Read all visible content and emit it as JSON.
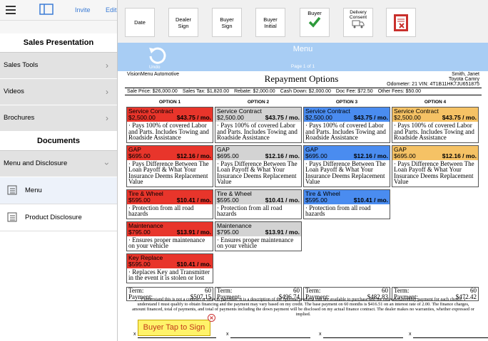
{
  "sidebar": {
    "invite": "Invite",
    "edit": "Edit",
    "sections": [
      {
        "title": "Sales Presentation",
        "items": [
          "Sales Tools",
          "Videos",
          "Brochures"
        ]
      },
      {
        "title": "Documents",
        "items": [
          "Menu and Disclosure"
        ]
      }
    ],
    "subitems": [
      "Menu",
      "Product Disclosure"
    ]
  },
  "toolbar": {
    "buttons": [
      "Date",
      "Dealer Sign",
      "Buyer Sign",
      "Buyer Initial",
      "Buyer",
      "Delivery Consent"
    ]
  },
  "header": {
    "undo": "Undo",
    "title": "Menu",
    "page": "Page 1 of 1"
  },
  "document": {
    "dealer": "VisionMenu Automotive",
    "title": "Repayment Options",
    "customer": "Smith, Janet",
    "vehicle": "Toyota Camry",
    "odometer": "Odometer: 21 VIN: 4T1B11HK7JU651875",
    "deal": [
      "Sale Price: $26,000.00",
      "Sales Tax: $1,820.00",
      "Rebate: $2,000.00",
      "Cash Down: $2,000.00",
      "Doc Fee: $72.50",
      "Other Fees: $50.00"
    ],
    "options": [
      {
        "label": "OPTION 1",
        "color": "#e8352b",
        "term_label": "Term:",
        "term": 60,
        "payment_label": "Payment:",
        "payment": "$507.15",
        "products": [
          {
            "name": "Service Contract",
            "price": "$2,500.00",
            "monthly": "$43.75 / mo.",
            "description": "· Pays 100% of covered Labor and Parts. Includes Towing and Roadside Assistance"
          },
          {
            "name": "GAP",
            "price": "$695.00",
            "monthly": "$12.16 / mo.",
            "description": "· Pays Difference Between The Loan Payoff & What Your Insurance Deems Replacement Value"
          },
          {
            "name": "Tire & Wheel",
            "price": "$595.00",
            "monthly": "$10.41 / mo.",
            "description": "· Protection from all road hazards"
          },
          {
            "name": "Maintenance",
            "price": "$795.00",
            "monthly": "$13.91 / mo.",
            "description": "· Ensures proper maintenance on your vehicle"
          },
          {
            "name": "Key Replace",
            "price": "$595.00",
            "monthly": "$10.41 / mo.",
            "description": "· Replaces Key and Transmitter in the event it is stolen or lost"
          }
        ]
      },
      {
        "label": "OPTION 2",
        "color": "#d3d3d3",
        "term_label": "Term:",
        "term": 60,
        "payment_label": "Payment:",
        "payment": "$496.74",
        "products": [
          {
            "name": "Service Contract",
            "price": "$2,500.00",
            "monthly": "$43.75 / mo.",
            "description": "· Pays 100% of covered Labor and Parts. Includes Towing and Roadside Assistance"
          },
          {
            "name": "GAP",
            "price": "$695.00",
            "monthly": "$12.16 / mo.",
            "description": "· Pays Difference Between The Loan Payoff & What Your Insurance Deems Replacement Value"
          },
          {
            "name": "Tire & Wheel",
            "price": "$595.00",
            "monthly": "$10.41 / mo.",
            "description": "· Protection from all road hazards"
          },
          {
            "name": "Maintenance",
            "price": "$795.00",
            "monthly": "$13.91 / mo.",
            "description": "· Ensures proper maintenance on your vehicle"
          }
        ]
      },
      {
        "label": "OPTION 3",
        "color": "#4a8cf0",
        "term_label": "Term:",
        "term": 60,
        "payment_label": "Payment:",
        "payment": "$482.83",
        "products": [
          {
            "name": "Service Contract",
            "price": "$2,500.00",
            "monthly": "$43.75 / mo.",
            "description": "· Pays 100% of covered Labor and Parts. Includes Towing and Roadside Assistance"
          },
          {
            "name": "GAP",
            "price": "$695.00",
            "monthly": "$12.16 / mo.",
            "description": "· Pays Difference Between The Loan Payoff & What Your Insurance Deems Replacement Value"
          },
          {
            "name": "Tire & Wheel",
            "price": "$595.00",
            "monthly": "$10.41 / mo.",
            "description": "· Protection from all road hazards"
          }
        ]
      },
      {
        "label": "OPTION 4",
        "color": "#f5c265",
        "term_label": "Term:",
        "term": 60,
        "payment_label": "Payment:",
        "payment": "$472.42",
        "products": [
          {
            "name": "Service Contract",
            "price": "$2,500.00",
            "monthly": "$43.75 / mo.",
            "description": "· Pays 100% of covered Labor and Parts. Includes Towing and Roadside Assistance"
          },
          {
            "name": "GAP",
            "price": "$695.00",
            "monthly": "$12.16 / mo.",
            "description": "· Pays Difference Between The Loan Payoff & What Your Insurance Deems Replacement Value"
          }
        ]
      }
    ],
    "disclaimer": "I understand this is not a contract or offer to purchase. It is a description of the optional products that are available to purchase and the estimated monthly payment for each choice. I understand I must qualify to obtain financing and the payment may vary based on my credit. The base payment on 60 months is $416.51 on an interest rate of 2.00. The finance charges, amount financed, total of payments, and total of payments including the down payment will be disclosed on my actual finance contract. The dealer makes no warranties, whether expressed or implied.",
    "sign_button": "Buyer Tap to Sign",
    "sign_marks": [
      "x",
      "x",
      "x",
      "x"
    ]
  }
}
